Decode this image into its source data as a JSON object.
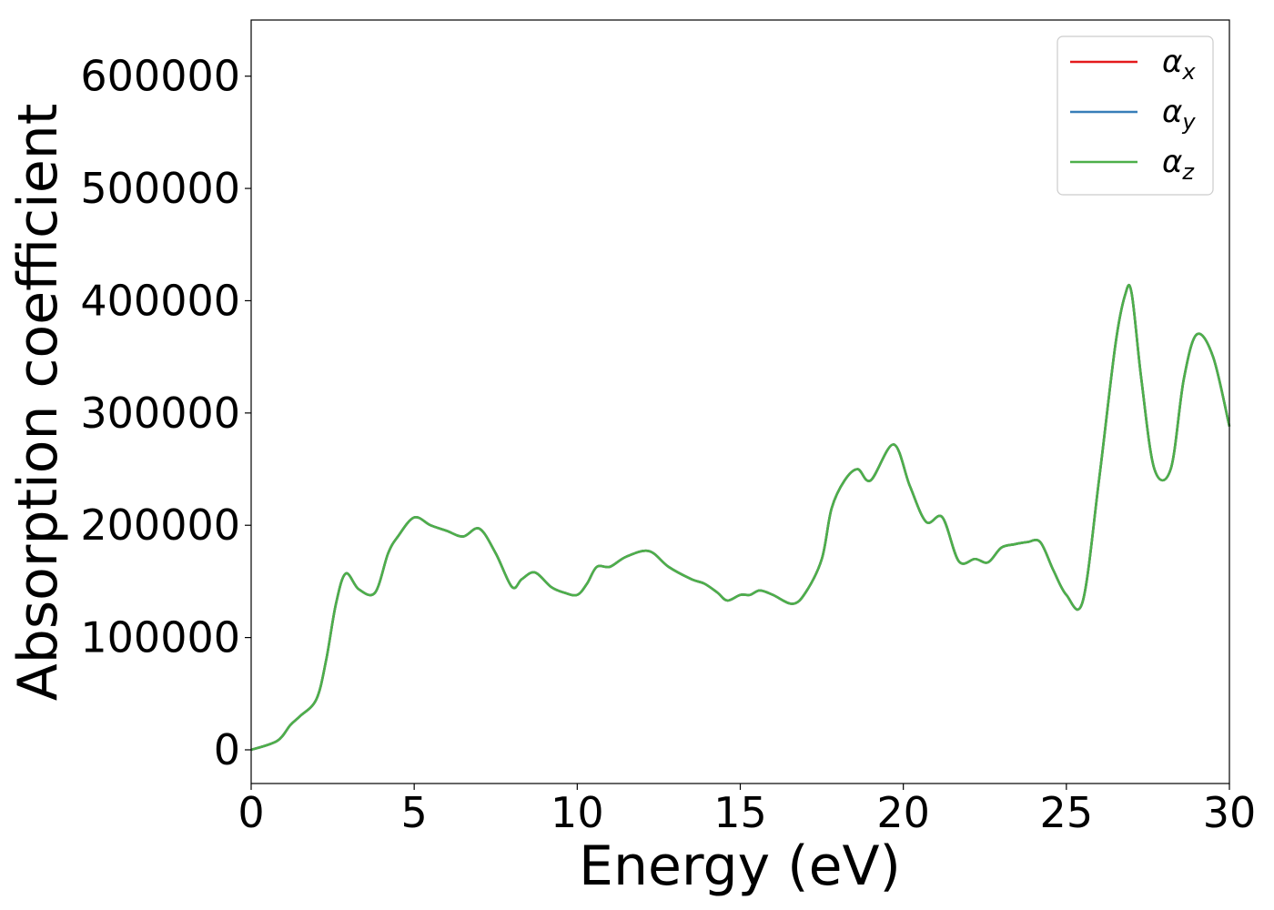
{
  "chart_data": {
    "type": "line",
    "xlabel": "Energy (eV)",
    "ylabel": "Absorption coefficient",
    "xlim": [
      0,
      30
    ],
    "ylim": [
      -30000,
      650000
    ],
    "xticks": [
      0,
      5,
      10,
      15,
      20,
      25,
      30
    ],
    "yticks": [
      0,
      100000,
      200000,
      300000,
      400000,
      500000,
      600000
    ],
    "grid": false,
    "legend": {
      "position": "top-right",
      "entries": [
        {
          "symbol": "α",
          "sub": "x",
          "color": "#e41a1c"
        },
        {
          "symbol": "α",
          "sub": "y",
          "color": "#377eb8"
        },
        {
          "symbol": "α",
          "sub": "z",
          "color": "#4daf4a"
        }
      ]
    },
    "x": [
      0,
      0.8,
      1.2,
      1.5,
      2.0,
      2.3,
      2.6,
      2.9,
      3.3,
      3.8,
      4.2,
      4.5,
      5.0,
      5.5,
      6.0,
      6.5,
      7.0,
      7.5,
      8.0,
      8.3,
      8.7,
      9.2,
      9.6,
      10.0,
      10.3,
      10.6,
      11.0,
      11.5,
      12.2,
      12.8,
      13.5,
      13.9,
      14.3,
      14.6,
      15.0,
      15.3,
      15.6,
      16.0,
      16.6,
      17.0,
      17.5,
      17.8,
      18.2,
      18.6,
      19.0,
      19.7,
      20.2,
      20.7,
      21.2,
      21.7,
      22.2,
      22.6,
      23.0,
      23.4,
      23.8,
      24.2,
      24.6,
      25.0,
      25.5,
      26.0,
      26.5,
      26.8,
      27.0,
      27.3,
      27.7,
      28.2,
      28.6,
      29.0,
      29.5,
      30.0
    ],
    "series": [
      {
        "color": "#e41a1c",
        "values": [
          0,
          8000,
          22000,
          30000,
          45000,
          80000,
          130000,
          157000,
          143000,
          140000,
          175000,
          190000,
          207000,
          200000,
          195000,
          190000,
          197000,
          175000,
          145000,
          152000,
          158000,
          145000,
          140000,
          138000,
          148000,
          163000,
          163000,
          172000,
          177000,
          163000,
          152000,
          148000,
          140000,
          133000,
          138000,
          138000,
          142000,
          138000,
          130000,
          140000,
          170000,
          215000,
          240000,
          250000,
          240000,
          272000,
          235000,
          203000,
          207000,
          168000,
          170000,
          167000,
          180000,
          183000,
          185000,
          185000,
          160000,
          138000,
          132000,
          240000,
          360000,
          405000,
          407000,
          330000,
          250000,
          250000,
          330000,
          370000,
          350000,
          288000
        ]
      },
      {
        "color": "#377eb8",
        "values": [
          0,
          8000,
          22000,
          30000,
          45000,
          80000,
          130000,
          157000,
          143000,
          140000,
          175000,
          190000,
          207000,
          200000,
          195000,
          190000,
          197000,
          175000,
          145000,
          152000,
          158000,
          145000,
          140000,
          138000,
          148000,
          163000,
          163000,
          172000,
          177000,
          163000,
          152000,
          148000,
          140000,
          133000,
          138000,
          138000,
          142000,
          138000,
          130000,
          140000,
          170000,
          215000,
          240000,
          250000,
          240000,
          272000,
          235000,
          203000,
          207000,
          168000,
          170000,
          167000,
          180000,
          183000,
          185000,
          185000,
          160000,
          138000,
          132000,
          240000,
          360000,
          405000,
          407000,
          330000,
          250000,
          250000,
          330000,
          370000,
          350000,
          288000
        ]
      },
      {
        "color": "#4daf4a",
        "values": [
          0,
          8000,
          22000,
          30000,
          45000,
          80000,
          130000,
          157000,
          143000,
          140000,
          175000,
          190000,
          207000,
          200000,
          195000,
          190000,
          197000,
          175000,
          145000,
          152000,
          158000,
          145000,
          140000,
          138000,
          148000,
          163000,
          163000,
          172000,
          177000,
          163000,
          152000,
          148000,
          140000,
          133000,
          138000,
          138000,
          142000,
          138000,
          130000,
          140000,
          170000,
          215000,
          240000,
          250000,
          240000,
          272000,
          235000,
          203000,
          207000,
          168000,
          170000,
          167000,
          180000,
          183000,
          185000,
          185000,
          160000,
          138000,
          132000,
          240000,
          360000,
          405000,
          407000,
          330000,
          250000,
          250000,
          330000,
          370000,
          350000,
          288000
        ]
      }
    ]
  }
}
